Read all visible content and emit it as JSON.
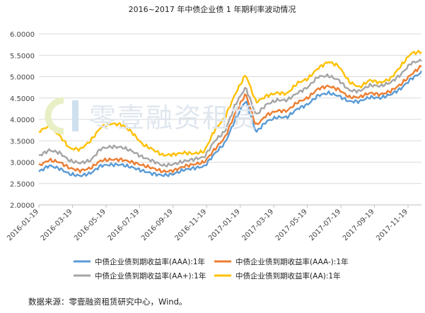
{
  "chart_data": {
    "type": "line",
    "title": "2016~2017 年中债企业债 1 年期利率波动情况",
    "xlabel": "",
    "ylabel": "",
    "ylim": [
      2.0,
      6.0
    ],
    "yticks": [
      "6.0000",
      "5.5000",
      "5.0000",
      "4.5000",
      "4.0000",
      "3.5000",
      "3.0000",
      "2.5000",
      "2.0000"
    ],
    "xticks": [
      "2016-01-19",
      "2016-03-19",
      "2016-05-19",
      "2016-07-19",
      "2016-09-19",
      "2016-11-19",
      "2017-01-19",
      "2017-03-19",
      "2017-05-19",
      "2017-07-19",
      "2017-09-19",
      "2017-11-19"
    ],
    "grid": true,
    "legend_position": "bottom",
    "series": [
      {
        "name": "中债企业债到期收益率(AAA):1年",
        "color": "#5b9bd5",
        "values": [
          2.78,
          2.92,
          2.85,
          2.72,
          2.68,
          2.74,
          2.92,
          2.94,
          2.94,
          2.88,
          2.8,
          2.73,
          2.69,
          2.72,
          2.82,
          2.86,
          2.9,
          3.2,
          3.45,
          4.0,
          4.45,
          3.7,
          3.95,
          4.05,
          4.05,
          4.25,
          4.35,
          4.56,
          4.62,
          4.55,
          4.42,
          4.42,
          4.52,
          4.5,
          4.58,
          4.72,
          4.95,
          5.1
        ]
      },
      {
        "name": "中债企业债到期收益率(AAA-):1年",
        "color": "#ed7d31",
        "values": [
          2.92,
          3.05,
          3.0,
          2.86,
          2.8,
          2.86,
          3.04,
          3.06,
          3.06,
          3.0,
          2.93,
          2.86,
          2.78,
          2.8,
          2.9,
          2.95,
          3.0,
          3.3,
          3.58,
          4.15,
          4.6,
          3.85,
          4.1,
          4.2,
          4.2,
          4.4,
          4.5,
          4.72,
          4.78,
          4.7,
          4.52,
          4.52,
          4.62,
          4.58,
          4.66,
          4.82,
          5.05,
          5.25
        ]
      },
      {
        "name": "中债企业债到期收益率(AA+):1年",
        "color": "#a5a5a5",
        "values": [
          3.15,
          3.28,
          3.22,
          3.03,
          2.98,
          3.04,
          3.32,
          3.36,
          3.35,
          3.26,
          3.12,
          3.03,
          2.92,
          2.95,
          3.02,
          3.07,
          3.12,
          3.5,
          3.72,
          4.35,
          4.75,
          4.1,
          4.35,
          4.45,
          4.45,
          4.62,
          4.75,
          5.0,
          5.02,
          4.92,
          4.68,
          4.66,
          4.8,
          4.78,
          4.86,
          5.05,
          5.32,
          5.38
        ]
      },
      {
        "name": "中债企业债到期收益率(AA):1年",
        "color": "#ffc000",
        "values": [
          3.72,
          3.85,
          3.62,
          3.32,
          3.3,
          3.5,
          3.82,
          3.9,
          3.88,
          3.7,
          3.42,
          3.3,
          3.16,
          3.18,
          3.22,
          3.2,
          3.25,
          3.75,
          4.05,
          4.6,
          5.05,
          4.4,
          4.55,
          4.62,
          4.6,
          4.85,
          4.95,
          5.2,
          5.35,
          5.25,
          4.88,
          4.75,
          4.92,
          4.86,
          4.95,
          5.25,
          5.55,
          5.58
        ]
      }
    ]
  },
  "source_text": "数据来源：零壹融资租赁研究中心，Wind。",
  "watermark_text": "零壹融资租赁"
}
